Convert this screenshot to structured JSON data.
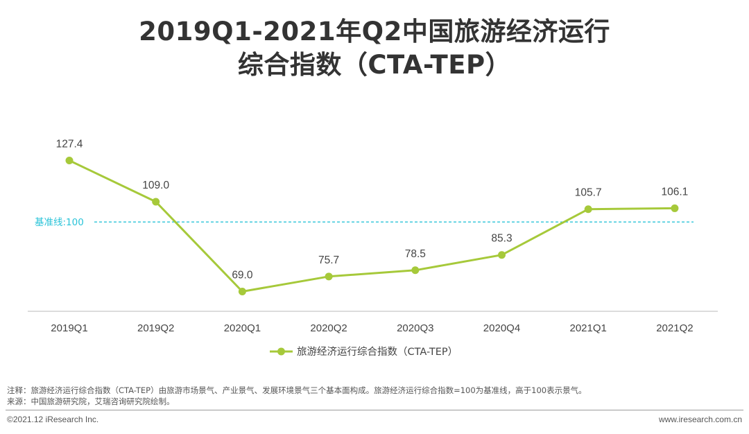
{
  "title": {
    "line1": "2019Q1-2021年Q2中国旅游经济运行",
    "line2": "综合指数（CTA-TEP）"
  },
  "colors": {
    "series": "#a6c93a",
    "baseline": "#29c3d8",
    "axis": "#c8c8c8",
    "text": "#444444"
  },
  "chart_data": {
    "type": "line",
    "title": "2019Q1-2021年Q2中国旅游经济运行综合指数（CTA-TEP）",
    "categories": [
      "2019Q1",
      "2019Q2",
      "2020Q1",
      "2020Q2",
      "2020Q3",
      "2020Q4",
      "2021Q1",
      "2021Q2"
    ],
    "series": [
      {
        "name": "旅游经济运行综合指数（CTA-TEP）",
        "values": [
          127.4,
          109.0,
          69.0,
          75.7,
          78.5,
          85.3,
          105.7,
          106.1
        ],
        "labels": [
          "127.4",
          "109.0",
          "69.0",
          "75.7",
          "78.5",
          "85.3",
          "105.7",
          "106.1"
        ]
      }
    ],
    "baseline": {
      "value": 100,
      "label": "基准线:100"
    },
    "xlabel": "",
    "ylabel": "",
    "ylim": [
      50,
      140
    ],
    "grid": false,
    "legend": "bottom"
  },
  "notes": {
    "line1": "注释：旅游经济运行综合指数（CTA-TEP）由旅游市场景气、产业景气、发展环境景气三个基本面构成。旅游经济运行综合指数=100为基准线，高于100表示景气。",
    "line2": "来源：中国旅游研究院，艾瑞咨询研究院绘制。"
  },
  "footer": {
    "copyright": "©2021.12 iResearch Inc.",
    "website": "www.iresearch.com.cn"
  }
}
